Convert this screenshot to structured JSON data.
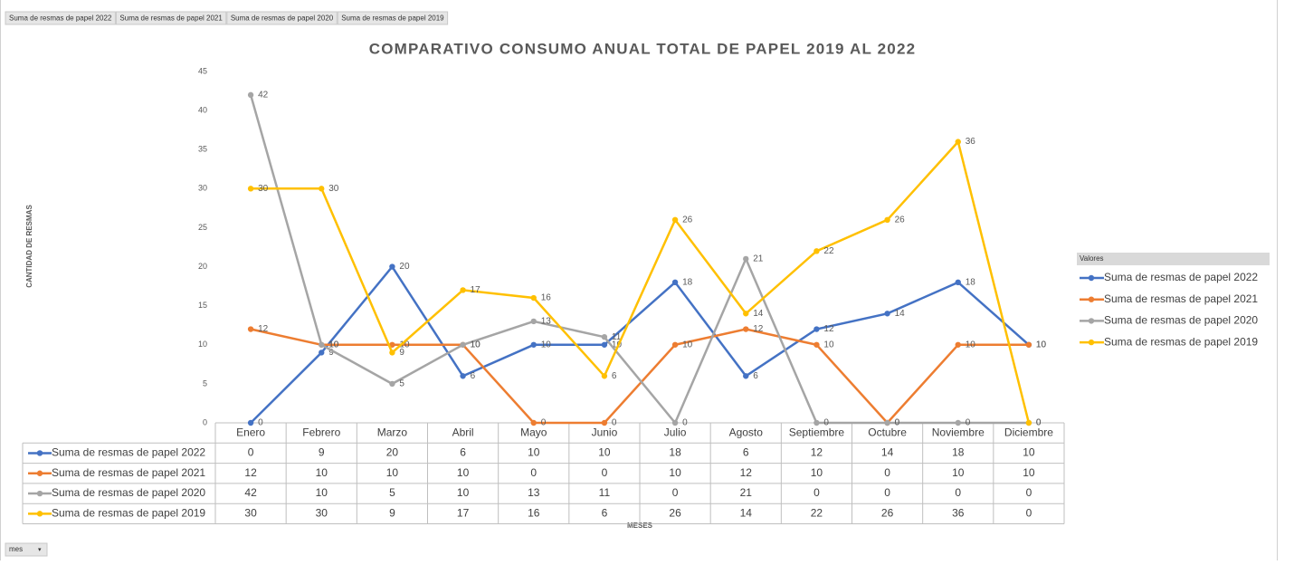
{
  "field_buttons": [
    "Suma de resmas de papel 2022",
    "Suma de resmas de papel 2021",
    "Suma de resmas de papel 2020",
    "Suma de resmas de papel 2019"
  ],
  "filter_button": "mes",
  "chart_data": {
    "type": "line",
    "title": "COMPARATIVO CONSUMO ANUAL TOTAL DE PAPEL  2019 AL 2022",
    "ylabel": "CANTIDAD DE RESMAS",
    "xlabel": "MESES",
    "legend_title": "Valores",
    "legend": "right",
    "categories": [
      "Enero",
      "Febrero",
      "Marzo",
      "Abril",
      "Mayo",
      "Junio",
      "Julio",
      "Agosto",
      "Septiembre",
      "Octubre",
      "Noviembre",
      "Diciembre"
    ],
    "series": [
      {
        "name": "Suma de resmas de papel 2022",
        "color": "#4472c4",
        "values": [
          0,
          9,
          20,
          6,
          10,
          10,
          18,
          6,
          12,
          14,
          18,
          10
        ]
      },
      {
        "name": "Suma de resmas de papel 2021",
        "color": "#ed7d31",
        "values": [
          12,
          10,
          10,
          10,
          0,
          0,
          10,
          12,
          10,
          0,
          10,
          10
        ]
      },
      {
        "name": "Suma de resmas de papel 2020",
        "color": "#a5a5a5",
        "values": [
          42,
          10,
          5,
          10,
          13,
          11,
          0,
          21,
          0,
          0,
          0,
          0
        ]
      },
      {
        "name": "Suma de resmas de papel 2019",
        "color": "#ffc000",
        "values": [
          30,
          30,
          9,
          17,
          16,
          6,
          26,
          14,
          22,
          26,
          36,
          0
        ]
      }
    ],
    "ylim": [
      0,
      45
    ],
    "yticks": [
      0,
      5,
      10,
      15,
      20,
      25,
      30,
      35,
      40,
      45
    ],
    "grid": false
  }
}
